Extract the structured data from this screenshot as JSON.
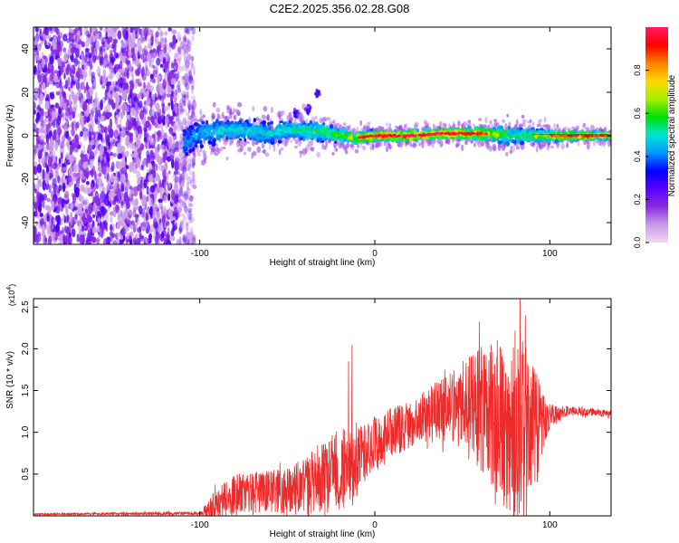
{
  "figure_title": "C2E2.2025.356.02.28.G08",
  "colors": {
    "axis": "#000000",
    "snr_line": "#ee2a2a",
    "colormap": [
      "#f2d9f2",
      "#c89be8",
      "#8a2be2",
      "#5b00ff",
      "#0000ff",
      "#0099ff",
      "#00e5d2",
      "#00e000",
      "#aaee00",
      "#ffd700",
      "#ff7f00",
      "#ff0000",
      "#ff1a66"
    ]
  },
  "chart_data": [
    {
      "type": "heatmap",
      "name": "spectrogram",
      "title": "",
      "xlabel": "Height of straight line (km)",
      "ylabel": "Frequency (Hz)",
      "xlim": [
        -195,
        135
      ],
      "ylim": [
        -50,
        50
      ],
      "x_ticks": [
        -100,
        0,
        100
      ],
      "x_tick_labels": [
        "-100",
        "0",
        "100"
      ],
      "y_ticks": [
        -40,
        -20,
        0,
        20,
        40
      ],
      "y_tick_labels": [
        "-40",
        "-20",
        "0",
        "20",
        "40"
      ],
      "colorbar": {
        "label": "Normalized spectral amplitude",
        "range": [
          0,
          1
        ],
        "ticks": [
          0.0,
          0.2,
          0.4,
          0.6,
          0.8
        ],
        "tick_labels": [
          "0.0",
          "0.2",
          "0.4",
          "0.6",
          "0.8"
        ]
      },
      "noise_region_x": [
        -195,
        -107
      ],
      "band_center": {
        "x": [
          -108,
          -100,
          -90,
          -80,
          -70,
          -60,
          -50,
          -40,
          -30,
          -20,
          -10,
          0,
          20,
          40,
          60,
          80,
          100,
          120,
          135
        ],
        "hz": [
          -3,
          1,
          2,
          3,
          2,
          1,
          3,
          2,
          2,
          0,
          -1,
          0,
          0,
          1,
          1,
          0,
          0,
          0,
          0
        ]
      },
      "band_halfwidth_hz": {
        "x": [
          -108,
          -100,
          -80,
          -60,
          -40,
          -20,
          0,
          40,
          80,
          100,
          135
        ],
        "hz": [
          8,
          7,
          6,
          6,
          6,
          4,
          3,
          3,
          5,
          3,
          2
        ]
      },
      "peak_amplitude": {
        "x": [
          -108,
          -90,
          -60,
          -40,
          -20,
          0,
          20,
          40,
          60,
          80,
          100,
          120,
          135
        ],
        "a": [
          0.45,
          0.55,
          0.55,
          0.6,
          0.7,
          0.9,
          0.95,
          0.92,
          0.85,
          0.6,
          0.8,
          0.85,
          0.85
        ]
      },
      "outliers": [
        {
          "x": -45,
          "hz": 10
        },
        {
          "x": -33,
          "hz": 20
        },
        {
          "x": -38,
          "hz": 12
        }
      ]
    },
    {
      "type": "line",
      "name": "snr",
      "title": "",
      "xlabel": "Height of straight line (km)",
      "ylabel": "SNR (10 * v/v)",
      "y_multiplier_label": "(x10",
      "y_multiplier_exp": "4",
      "xlim": [
        -195,
        135
      ],
      "ylim": [
        0,
        2.6
      ],
      "x_ticks": [
        -100,
        0,
        100
      ],
      "x_tick_labels": [
        "-100",
        "0",
        "100"
      ],
      "y_ticks": [
        0.5,
        1.0,
        1.5,
        2.0,
        2.5
      ],
      "y_tick_labels": [
        "0.5",
        "1.0",
        "1.5",
        "2.0",
        "2.5"
      ],
      "series": [
        {
          "name": "SNR",
          "envelope_x": [
            -195,
            -100,
            -95,
            -90,
            -80,
            -70,
            -60,
            -50,
            -40,
            -30,
            -20,
            -10,
            0,
            10,
            20,
            30,
            40,
            50,
            60,
            70,
            80,
            85,
            90,
            95,
            100,
            110,
            120,
            135
          ],
          "baseline": [
            0.02,
            0.03,
            0.08,
            0.15,
            0.25,
            0.28,
            0.3,
            0.3,
            0.35,
            0.45,
            0.55,
            0.65,
            0.85,
            1.0,
            1.1,
            1.2,
            1.25,
            1.3,
            1.3,
            1.15,
            1.0,
            0.9,
            1.0,
            1.1,
            1.2,
            1.25,
            1.25,
            1.22
          ],
          "amplitude": [
            0.01,
            0.02,
            0.1,
            0.2,
            0.25,
            0.25,
            0.25,
            0.3,
            0.35,
            0.45,
            0.5,
            0.4,
            0.35,
            0.3,
            0.3,
            0.35,
            0.4,
            0.55,
            0.75,
            0.9,
            1.1,
            1.2,
            0.9,
            0.5,
            0.15,
            0.06,
            0.05,
            0.04
          ],
          "peaks": [
            {
              "x": -30,
              "y": 0.85
            },
            {
              "x": -15,
              "y": 1.85
            },
            {
              "x": -13,
              "y": 2.05
            },
            {
              "x": 40,
              "y": 1.75
            },
            {
              "x": 55,
              "y": 1.9
            },
            {
              "x": 70,
              "y": 2.1
            },
            {
              "x": 83,
              "y": 2.6
            },
            {
              "x": 86,
              "y": 2.4
            },
            {
              "x": 80,
              "y": 0.05
            }
          ]
        }
      ]
    }
  ]
}
